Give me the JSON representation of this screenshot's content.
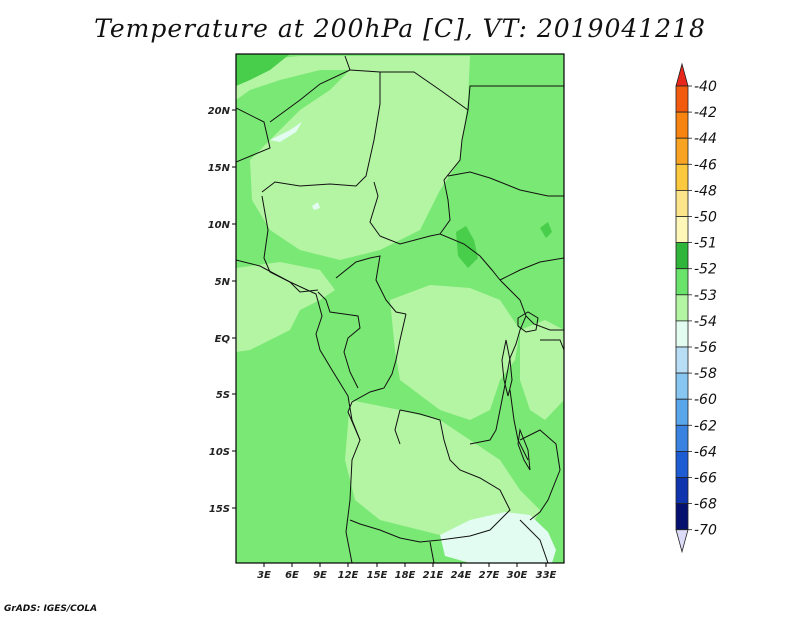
{
  "title": "Temperature at 200hPa [C], VT: 2019041218",
  "footer": "GrADS: IGES/COLA",
  "map": {
    "lat_ticks": [
      "20N",
      "15N",
      "10N",
      "5N",
      "EQ",
      "5S",
      "10S",
      "15S"
    ],
    "lon_ticks": [
      "3E",
      "6E",
      "9E",
      "12E",
      "15E",
      "18E",
      "21E",
      "24E",
      "27E",
      "30E",
      "33E"
    ]
  },
  "colorbar": {
    "labels": [
      "-40",
      "-42",
      "-44",
      "-46",
      "-48",
      "-50",
      "-51",
      "-52",
      "-53",
      "-54",
      "-56",
      "-58",
      "-60",
      "-62",
      "-64",
      "-66",
      "-68",
      "-70"
    ],
    "colors": [
      "#e8251a",
      "#f25a0e",
      "#f78410",
      "#f8a422",
      "#fbc83e",
      "#fbe48a",
      "#fff7b8",
      "#2fb63a",
      "#6ae36a",
      "#b4f5a4",
      "#e2fcf2",
      "#b8def6",
      "#88c6f2",
      "#5aa6ea",
      "#3a82e0",
      "#1e5cd4",
      "#0e34ae",
      "#06106e",
      "#dcdcf8"
    ],
    "colors_semantic": "top triangle red (above -40) down to bottom triangle pale lavender (below -70)"
  },
  "field_colors": {
    "dominant_medium_green": "#7ae874",
    "light_green": "#b4f5a4",
    "dark_green": "#48ce4a",
    "pale_cyan": "#e2fcf2"
  }
}
